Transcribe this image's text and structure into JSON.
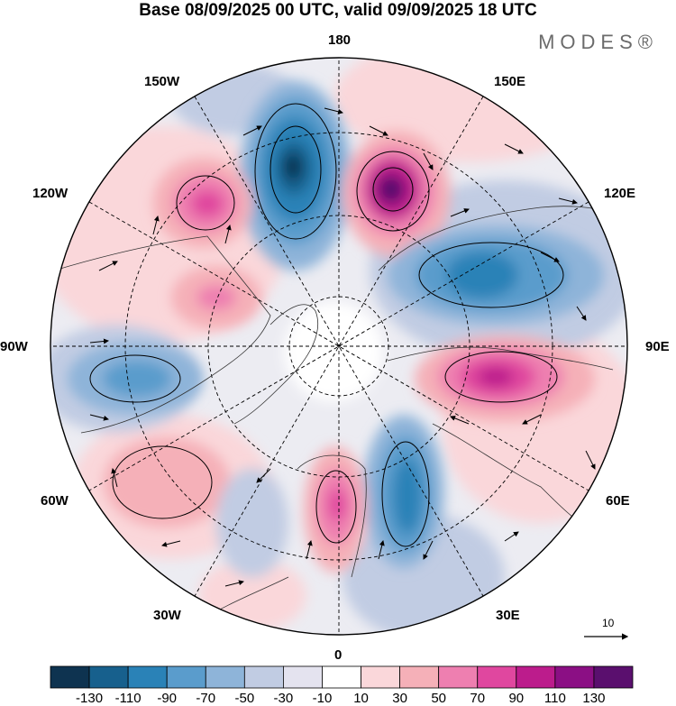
{
  "title": "Base 08/09/2025 00 UTC, valid 09/09/2025 18 UTC",
  "brand": "MODES®",
  "longitude_labels": {
    "lon_180": "180",
    "lon_150E": "150E",
    "lon_120E": "120E",
    "lon_90E": "90E",
    "lon_60E": "60E",
    "lon_30E": "30E",
    "lon_0": "0",
    "lon_30W": "30W",
    "lon_60W": "60W",
    "lon_90W": "90W",
    "lon_120W": "120W",
    "lon_150W": "150W"
  },
  "reference_vector": {
    "label": "10"
  },
  "colorbar": {
    "ticks": [
      "-130",
      "-110",
      "-90",
      "-70",
      "-50",
      "-30",
      "-10",
      "10",
      "30",
      "50",
      "70",
      "90",
      "110",
      "130"
    ],
    "colors": [
      "#0e3350",
      "#17608d",
      "#2a82b7",
      "#5a9ccc",
      "#8eb4d9",
      "#c1cce3",
      "#e4e3ef",
      "#ffffff",
      "#fad7da",
      "#f5b0b8",
      "#ee7fb0",
      "#e0479f",
      "#bc1c8c",
      "#8b0f84",
      "#5a0f6e"
    ]
  },
  "anomalies": [
    {
      "name": "blue-cell-180",
      "value": -130
    },
    {
      "name": "purple-cell-150E",
      "value": 110
    },
    {
      "name": "pink-cell-130W",
      "value": 70
    },
    {
      "name": "blue-cell-110E",
      "value": -90
    },
    {
      "name": "magenta-cell-80E",
      "value": 90
    },
    {
      "name": "blue-cell-25E",
      "value": -90
    },
    {
      "name": "pink-cell-5E",
      "value": 70
    },
    {
      "name": "blue-cell-80W",
      "value": -70
    },
    {
      "name": "pink-cell-50W",
      "value": 30
    },
    {
      "name": "pink-cell-110W",
      "value": 50
    },
    {
      "name": "blue-cell-20W",
      "value": -30
    }
  ]
}
